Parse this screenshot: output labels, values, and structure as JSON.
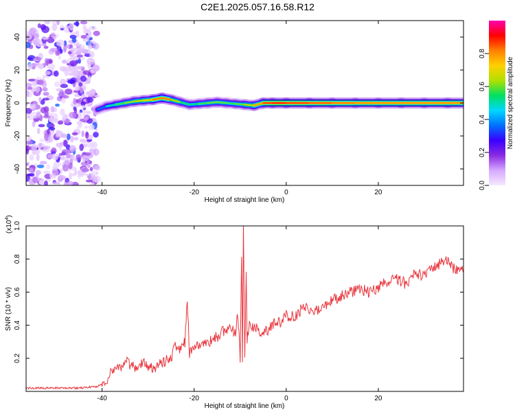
{
  "page_title": "C2E1.2025.057.16.58.R12",
  "chart_data": [
    {
      "type": "heatmap",
      "xlabel": "Height of straight line (km)",
      "ylabel": "Frequency (Hz)",
      "xlim": [
        -56.5,
        38.5
      ],
      "ylim": [
        -50,
        50
      ],
      "x_ticks": [
        -40,
        -20,
        0,
        20
      ],
      "y_ticks": [
        -40,
        -20,
        0,
        20,
        40
      ],
      "x_tick_labels": [
        "-40",
        "-20",
        "0",
        "20"
      ],
      "y_tick_labels": [
        "-40",
        "-20",
        "0",
        "20",
        "40"
      ],
      "colorbar": {
        "label": "Normalized spectral amplitude",
        "range": [
          0,
          1
        ],
        "ticks": [
          0.0,
          0.2,
          0.4,
          0.6,
          0.8
        ],
        "tick_labels": [
          "0.0",
          "0.2",
          "0.4",
          "0.6",
          "0.8"
        ],
        "colors": [
          "#f5e9ff",
          "#d6a9ff",
          "#8a2be2",
          "#3a00ff",
          "#0070ff",
          "#00d8ff",
          "#00e060",
          "#b0e000",
          "#ffd000",
          "#ff8000",
          "#ff0000",
          "#ff00b0"
        ]
      },
      "noise_region": {
        "x": [
          -56.5,
          -41
        ],
        "level": 0.15
      },
      "ridge": {
        "x": [
          -41,
          -39,
          -37,
          -35,
          -33,
          -31,
          -29,
          -27,
          -25,
          -23,
          -21,
          -19,
          -17,
          -15,
          -13,
          -11,
          -9,
          -7,
          -5,
          -3,
          0,
          5,
          10,
          15,
          20,
          25,
          30,
          35,
          38.5
        ],
        "freq": [
          -4,
          -2,
          -1,
          0,
          1,
          1.5,
          2,
          3,
          2,
          0.5,
          -1,
          -0.5,
          0,
          0.5,
          0,
          -0.5,
          -1,
          -1.5,
          0,
          0,
          0,
          0,
          0,
          0,
          0,
          0,
          0,
          0,
          0
        ],
        "amplitude": [
          0.3,
          0.45,
          0.55,
          0.6,
          0.65,
          0.7,
          0.75,
          0.9,
          0.75,
          0.6,
          0.5,
          0.55,
          0.6,
          0.6,
          0.6,
          0.55,
          0.65,
          0.7,
          0.85,
          0.9,
          0.9,
          0.85,
          0.85,
          0.8,
          0.8,
          0.8,
          0.8,
          0.8,
          0.8
        ]
      }
    },
    {
      "type": "line",
      "xlabel": "Height of straight line (km)",
      "ylabel": "SNR (10 * v/v)",
      "y_multiplier_label": "(x10",
      "y_multiplier_exponent": "4",
      "xlim": [
        -56.5,
        38.5
      ],
      "ylim": [
        0,
        1.0
      ],
      "x_ticks": [
        -40,
        -20,
        0,
        20
      ],
      "y_ticks": [
        0.2,
        0.4,
        0.6,
        0.8,
        1.0
      ],
      "x_tick_labels": [
        "-40",
        "-20",
        "0",
        "20"
      ],
      "y_tick_labels": [
        "0.2",
        "0.4",
        "0.6",
        "0.8",
        "1.0"
      ],
      "line_color": "#e8343c",
      "series": [
        {
          "x": [
            -56.5,
            -50,
            -45,
            -41,
            -39,
            -38,
            -37,
            -36,
            -35,
            -33,
            -31,
            -29,
            -27,
            -25,
            -24,
            -23,
            -22,
            -21.5,
            -21,
            -20,
            -19,
            -17,
            -15,
            -13,
            -11,
            -10.5,
            -10,
            -9.7,
            -9.5,
            -9.3,
            -9,
            -8.7,
            -8.5,
            -8,
            -7,
            -5,
            -3,
            -1,
            0,
            2,
            4,
            6,
            8,
            10,
            12,
            14,
            16,
            18,
            20,
            22,
            24,
            26,
            28,
            30,
            32,
            34,
            35,
            36,
            38.5
          ],
          "y": [
            0.02,
            0.02,
            0.02,
            0.03,
            0.06,
            0.12,
            0.15,
            0.14,
            0.18,
            0.15,
            0.17,
            0.14,
            0.18,
            0.2,
            0.28,
            0.25,
            0.3,
            0.56,
            0.22,
            0.28,
            0.28,
            0.3,
            0.33,
            0.38,
            0.36,
            0.46,
            0.2,
            0.84,
            0.18,
            1.0,
            0.2,
            0.7,
            0.3,
            0.42,
            0.38,
            0.35,
            0.4,
            0.42,
            0.46,
            0.45,
            0.52,
            0.48,
            0.5,
            0.55,
            0.58,
            0.6,
            0.62,
            0.6,
            0.63,
            0.66,
            0.68,
            0.65,
            0.72,
            0.7,
            0.74,
            0.78,
            0.8,
            0.75,
            0.72
          ]
        }
      ]
    }
  ]
}
